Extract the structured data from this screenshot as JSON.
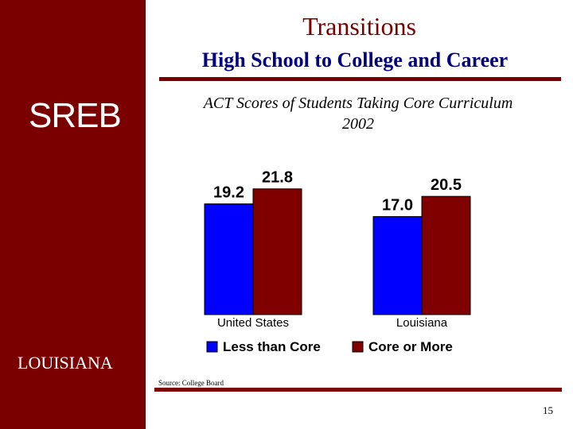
{
  "slide": {
    "title": "Transitions",
    "subtitle": "High School to College and Career",
    "logo_text": "SREB",
    "state_label": "LOUISIANA",
    "source": "Source: College Board",
    "page_number": "15"
  },
  "colors": {
    "sidebar": "#7a0000",
    "subtitle": "#000080",
    "series_less": "#0000ff",
    "series_core": "#800000"
  },
  "chart_data": {
    "type": "bar",
    "title": "ACT Scores of Students Taking Core Curriculum",
    "subtitle": "2002",
    "categories": [
      "United States",
      "Louisiana"
    ],
    "series": [
      {
        "name": "Less than Core",
        "values": [
          19.2,
          17.0
        ],
        "value_labels": [
          "19.2",
          "17.0"
        ],
        "color": "#0000ff"
      },
      {
        "name": "Core or More",
        "values": [
          21.8,
          20.5
        ],
        "value_labels": [
          "21.8",
          "20.5"
        ],
        "color": "#800000"
      }
    ],
    "ylim": [
      0,
      27
    ],
    "axis_visible": false,
    "grid": false,
    "legend": "bottom"
  }
}
